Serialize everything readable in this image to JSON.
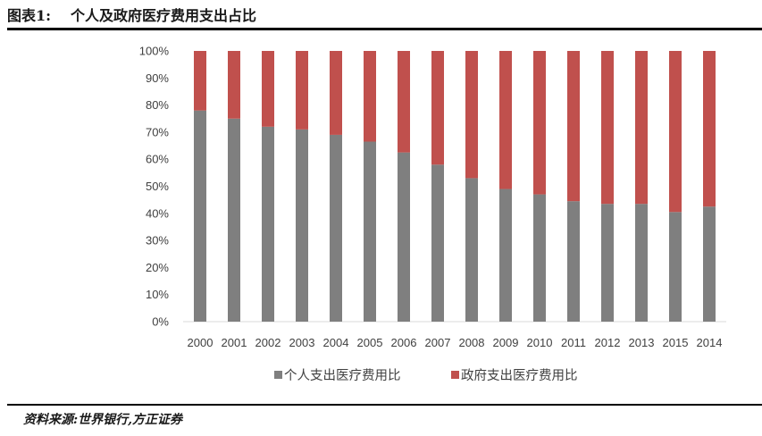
{
  "title": {
    "label": "图表1:",
    "text": "个人及政府医疗费用支出占比"
  },
  "source": "资料来源:世界银行,方正证券",
  "colors": {
    "personal": "#7f7f7f",
    "government": "#c0504d",
    "axis": "#d9d9d9",
    "text": "#404040"
  },
  "chart_data": {
    "type": "bar",
    "stacked": true,
    "title": "",
    "xlabel": "",
    "ylabel": "",
    "ylim": [
      0,
      100
    ],
    "yticks": [
      "0%",
      "10%",
      "20%",
      "30%",
      "40%",
      "50%",
      "60%",
      "70%",
      "80%",
      "90%",
      "100%"
    ],
    "categories": [
      "2000",
      "2001",
      "2002",
      "2003",
      "2004",
      "2005",
      "2006",
      "2007",
      "2008",
      "2009",
      "2010",
      "2011",
      "2012",
      "2013",
      "2015",
      "2014"
    ],
    "series": [
      {
        "name": "个人支出医疗费用比",
        "values": [
          78,
          75,
          72,
          71,
          69,
          66.5,
          62.5,
          58,
          53,
          49,
          47,
          44.5,
          43.5,
          43.5,
          40.5,
          42.5
        ]
      },
      {
        "name": "政府支出医疗费用比",
        "values": [
          22,
          25,
          28,
          29,
          31,
          33.5,
          37.5,
          42,
          47,
          51,
          53,
          55.5,
          56.5,
          56.5,
          59.5,
          57.5
        ]
      }
    ],
    "legend_position": "bottom",
    "grid": false
  }
}
